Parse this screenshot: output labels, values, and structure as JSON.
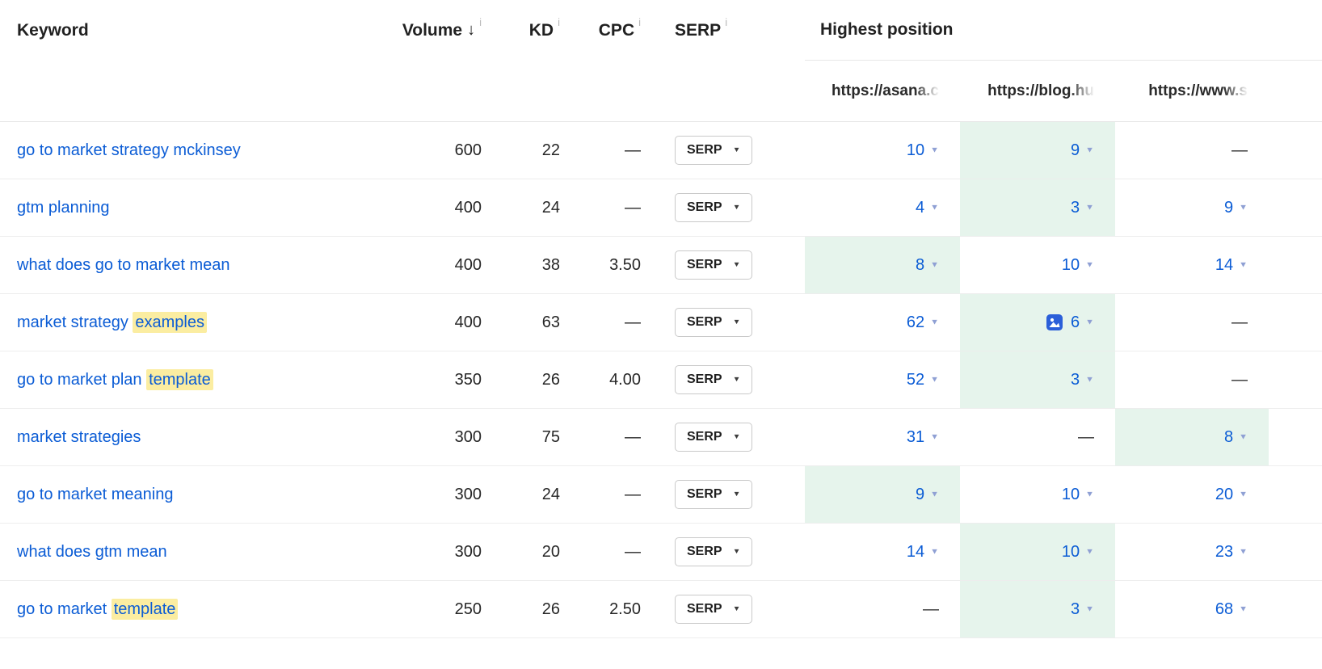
{
  "icons": {
    "caret": "▼",
    "sort_desc": "↓",
    "info": "i",
    "dash": "—",
    "thumbnail": "serp-thumbnail-icon"
  },
  "colors": {
    "link_blue": "#0b5cd5",
    "caret_blue": "#8fa0d4",
    "best_position_bg": "#e6f4ec",
    "keyword_highlight": "#fbeda1",
    "row_border": "#e7e7e7"
  },
  "header": {
    "keyword": "Keyword",
    "volume": "Volume",
    "kd": "KD",
    "cpc": "CPC",
    "serp": "SERP",
    "highest_position": "Highest position",
    "targets": [
      "https://asana.c",
      "https://blog.hu",
      "https://www.s"
    ]
  },
  "serp_button": {
    "label": "SERP"
  },
  "rows": [
    {
      "keyword": [
        {
          "text": "go to market strategy mckinsey",
          "highlight": false
        }
      ],
      "volume": "600",
      "kd": "22",
      "cpc": "—",
      "positions": [
        {
          "value": "10",
          "best": false
        },
        {
          "value": "9",
          "best": true
        },
        {
          "value": "—",
          "best": false
        }
      ]
    },
    {
      "keyword": [
        {
          "text": "gtm planning",
          "highlight": false
        }
      ],
      "volume": "400",
      "kd": "24",
      "cpc": "—",
      "positions": [
        {
          "value": "4",
          "best": false
        },
        {
          "value": "3",
          "best": true
        },
        {
          "value": "9",
          "best": false
        }
      ]
    },
    {
      "keyword": [
        {
          "text": "what does go to market mean",
          "highlight": false
        }
      ],
      "volume": "400",
      "kd": "38",
      "cpc": "3.50",
      "positions": [
        {
          "value": "8",
          "best": true
        },
        {
          "value": "10",
          "best": false
        },
        {
          "value": "14",
          "best": false
        }
      ]
    },
    {
      "keyword": [
        {
          "text": "market strategy ",
          "highlight": false
        },
        {
          "text": "examples",
          "highlight": true
        }
      ],
      "volume": "400",
      "kd": "63",
      "cpc": "—",
      "positions": [
        {
          "value": "62",
          "best": false
        },
        {
          "value": "6",
          "best": true,
          "thumbnail_icon": true
        },
        {
          "value": "—",
          "best": false
        }
      ]
    },
    {
      "keyword": [
        {
          "text": "go to market plan ",
          "highlight": false
        },
        {
          "text": "template",
          "highlight": true
        }
      ],
      "volume": "350",
      "kd": "26",
      "cpc": "4.00",
      "positions": [
        {
          "value": "52",
          "best": false
        },
        {
          "value": "3",
          "best": true
        },
        {
          "value": "—",
          "best": false
        }
      ]
    },
    {
      "keyword": [
        {
          "text": "market strategies",
          "highlight": false
        }
      ],
      "volume": "300",
      "kd": "75",
      "cpc": "—",
      "positions": [
        {
          "value": "31",
          "best": false
        },
        {
          "value": "—",
          "best": false
        },
        {
          "value": "8",
          "best": true
        }
      ]
    },
    {
      "keyword": [
        {
          "text": "go to market meaning",
          "highlight": false
        }
      ],
      "volume": "300",
      "kd": "24",
      "cpc": "—",
      "positions": [
        {
          "value": "9",
          "best": true
        },
        {
          "value": "10",
          "best": false
        },
        {
          "value": "20",
          "best": false
        }
      ]
    },
    {
      "keyword": [
        {
          "text": "what does gtm mean",
          "highlight": false
        }
      ],
      "volume": "300",
      "kd": "20",
      "cpc": "—",
      "positions": [
        {
          "value": "14",
          "best": false
        },
        {
          "value": "10",
          "best": true
        },
        {
          "value": "23",
          "best": false
        }
      ]
    },
    {
      "keyword": [
        {
          "text": "go to market ",
          "highlight": false
        },
        {
          "text": "template",
          "highlight": true
        }
      ],
      "volume": "250",
      "kd": "26",
      "cpc": "2.50",
      "positions": [
        {
          "value": "—",
          "best": false
        },
        {
          "value": "3",
          "best": true
        },
        {
          "value": "68",
          "best": false
        }
      ]
    }
  ]
}
